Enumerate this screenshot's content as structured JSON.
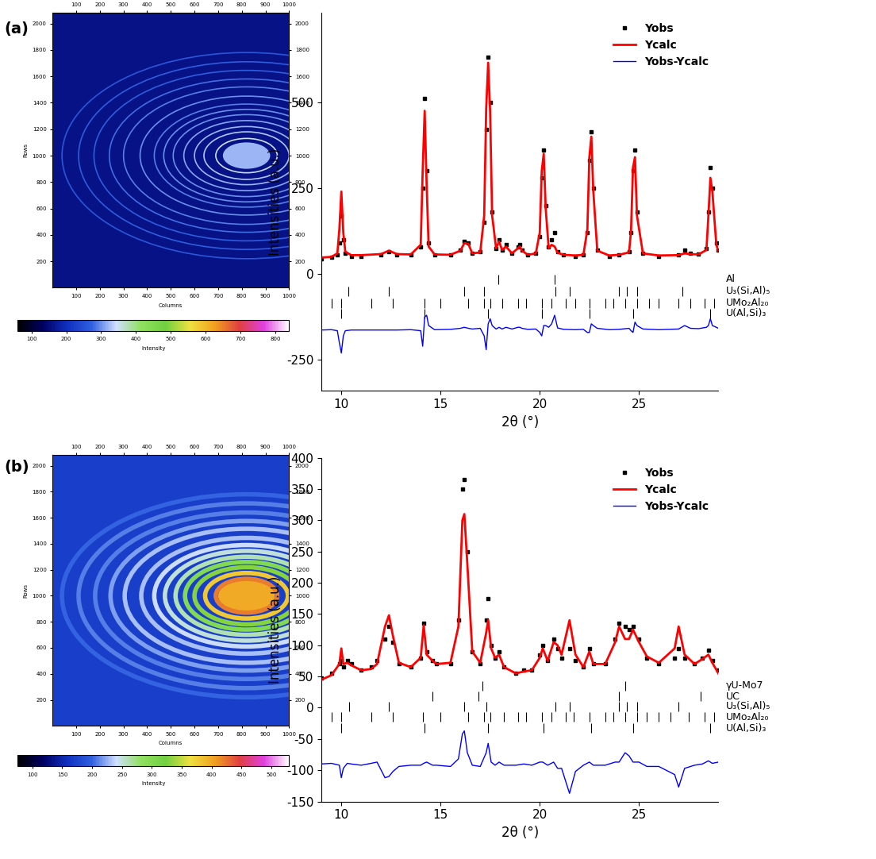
{
  "chart_data": [
    {
      "type": "detector_image",
      "panel": "(a)",
      "xlabel": "Columns",
      "ylabel": "Rows",
      "xlim": [
        0,
        1000
      ],
      "xticks": [
        100,
        200,
        300,
        400,
        500,
        600,
        700,
        800,
        900,
        1000
      ],
      "ylim": [
        0,
        2080
      ],
      "yticks": [
        200,
        400,
        600,
        800,
        1000,
        1200,
        1400,
        1600,
        1800,
        2000
      ],
      "center": [
        820,
        1000
      ],
      "background": 160,
      "glow": {
        "radius": 100,
        "intensity": 320
      },
      "rings": {
        "radius": [
          130,
          180,
          220,
          265,
          310,
          350,
          390,
          450,
          520,
          580,
          645,
          710,
          780
        ],
        "intensity": [
          350,
          330,
          320,
          310,
          300,
          300,
          290,
          300,
          290,
          280,
          270,
          270,
          260
        ]
      },
      "colorbar": {
        "label": "Intensity",
        "range": [
          60,
          840
        ],
        "ticks": [
          100,
          200,
          300,
          400,
          500,
          600,
          700,
          800
        ]
      }
    },
    {
      "type": "line",
      "xlabel": "2θ (°)",
      "ylabel": "Intensities (a.u.)",
      "xlim": [
        9,
        29
      ],
      "xticks": [
        10,
        15,
        20,
        25
      ],
      "ylim": [
        -340,
        760
      ],
      "yticks": [
        -250,
        0,
        250,
        500
      ],
      "legend": "upper right",
      "x": [
        9.0,
        9.5,
        9.8,
        9.9,
        10.0,
        10.1,
        10.2,
        10.5,
        11.0,
        12.0,
        12.4,
        12.8,
        13.5,
        14.0,
        14.1,
        14.2,
        14.3,
        14.4,
        14.7,
        15.5,
        16.0,
        16.2,
        16.4,
        16.6,
        17.0,
        17.2,
        17.3,
        17.4,
        17.5,
        17.6,
        17.8,
        17.95,
        18.1,
        18.3,
        18.6,
        18.9,
        19.0,
        19.1,
        19.4,
        19.8,
        20.0,
        20.1,
        20.2,
        20.3,
        20.45,
        20.6,
        20.75,
        20.9,
        21.2,
        21.8,
        22.2,
        22.4,
        22.5,
        22.6,
        22.7,
        22.9,
        23.5,
        24.0,
        24.5,
        24.6,
        24.7,
        24.8,
        24.9,
        25.2,
        26.0,
        27.0,
        27.3,
        27.6,
        28.0,
        28.4,
        28.5,
        28.6,
        28.7,
        28.9,
        29.0
      ],
      "series": [
        {
          "name": "Yobs",
          "color": "#000000",
          "marker": "square",
          "line_style": "none",
          "values": [
            45,
            48,
            55,
            90,
            170,
            100,
            60,
            52,
            52,
            55,
            65,
            55,
            55,
            80,
            250,
            510,
            300,
            90,
            55,
            55,
            70,
            95,
            90,
            60,
            65,
            150,
            420,
            630,
            500,
            180,
            75,
            100,
            70,
            85,
            60,
            80,
            85,
            70,
            55,
            60,
            110,
            280,
            360,
            200,
            80,
            100,
            120,
            65,
            55,
            52,
            55,
            120,
            330,
            415,
            250,
            70,
            52,
            55,
            65,
            120,
            300,
            360,
            180,
            60,
            52,
            55,
            70,
            60,
            58,
            75,
            180,
            310,
            250,
            90,
            70
          ]
        },
        {
          "name": "Ycalc",
          "color": "#ff0000",
          "line_style": "solid",
          "values": [
            48,
            50,
            60,
            130,
            240,
            120,
            65,
            55,
            55,
            58,
            68,
            58,
            57,
            85,
            300,
            475,
            260,
            80,
            57,
            56,
            68,
            90,
            88,
            60,
            63,
            170,
            480,
            615,
            470,
            170,
            75,
            95,
            70,
            80,
            60,
            75,
            80,
            68,
            56,
            60,
            120,
            300,
            350,
            190,
            75,
            85,
            80,
            62,
            56,
            54,
            56,
            130,
            340,
            400,
            240,
            68,
            54,
            56,
            63,
            125,
            310,
            340,
            170,
            60,
            54,
            55,
            60,
            58,
            57,
            70,
            170,
            280,
            240,
            85,
            68
          ]
        },
        {
          "name": "Yobs-Ycalc",
          "color": "#0000ff",
          "line_style": "solid",
          "values": [
            -163,
            -162,
            -165,
            -200,
            -230,
            -180,
            -165,
            -163,
            -163,
            -163,
            -163,
            -163,
            -162,
            -165,
            -210,
            -125,
            -120,
            -150,
            -162,
            -161,
            -158,
            -155,
            -158,
            -160,
            -158,
            -180,
            -220,
            -145,
            -130,
            -150,
            -160,
            -155,
            -160,
            -155,
            -160,
            -155,
            -155,
            -158,
            -161,
            -160,
            -170,
            -180,
            -150,
            -150,
            -155,
            -145,
            -120,
            -157,
            -161,
            -162,
            -161,
            -170,
            -170,
            -145,
            -150,
            -158,
            -162,
            -161,
            -158,
            -165,
            -170,
            -140,
            -150,
            -160,
            -162,
            -160,
            -150,
            -158,
            -159,
            -155,
            -150,
            -130,
            -150,
            -155,
            -158
          ]
        }
      ],
      "phases": [
        {
          "name": "Al",
          "level": -15,
          "positions": [
            17.9,
            20.75
          ]
        },
        {
          "name": "U₃(Si,Al)₅",
          "level": -50,
          "positions": [
            10.35,
            12.4,
            16.2,
            17.2,
            20.8,
            21.5,
            24.0,
            24.4,
            24.9,
            27.2
          ]
        },
        {
          "name": "UMo₂Al₂₀",
          "level": -85,
          "positions": [
            9.5,
            10.0,
            11.5,
            12.6,
            14.2,
            15.0,
            16.4,
            17.2,
            17.5,
            18.1,
            18.9,
            19.3,
            20.1,
            20.6,
            21.3,
            21.8,
            22.5,
            23.3,
            23.7,
            24.3,
            24.9,
            25.5,
            26.0,
            27.0,
            27.6,
            28.3,
            28.8
          ]
        },
        {
          "name": "U(Al,Si)₃",
          "level": -115,
          "positions": [
            10.0,
            14.2,
            17.4,
            20.1,
            22.5,
            24.7,
            28.6
          ]
        }
      ]
    },
    {
      "type": "detector_image",
      "panel": "(b)",
      "xlabel": "Columns",
      "ylabel": "Rows",
      "xlim": [
        0,
        1000
      ],
      "xticks": [
        100,
        200,
        300,
        400,
        500,
        600,
        700,
        800,
        900,
        1000
      ],
      "ylim": [
        0,
        2080
      ],
      "yticks": [
        200,
        400,
        600,
        800,
        1000,
        1200,
        1400,
        1600,
        1800,
        2000
      ],
      "center": [
        820,
        1000
      ],
      "background": 170,
      "glow": {
        "radius": 120,
        "intensity": 400
      },
      "rings": {
        "radius": [
          130,
          175,
          220,
          260,
          300,
          345,
          390,
          445,
          515,
          575,
          640,
          710,
          780
        ],
        "intensity": [
          420,
          380,
          330,
          300,
          260,
          250,
          240,
          230,
          230,
          220,
          210,
          210,
          200
        ]
      },
      "colorbar": {
        "label": "Intensity",
        "range": [
          75,
          530
        ],
        "ticks": [
          100,
          150,
          200,
          250,
          300,
          350,
          400,
          450,
          500
        ]
      }
    },
    {
      "type": "line",
      "xlabel": "2θ (°)",
      "ylabel": "Intensities (a.u.)",
      "xlim": [
        9,
        29
      ],
      "xticks": [
        10,
        15,
        20,
        25
      ],
      "ylim": [
        -150,
        400
      ],
      "yticks": [
        -150,
        -100,
        -50,
        0,
        50,
        100,
        150,
        200,
        250,
        300,
        350,
        400
      ],
      "legend": "upper right",
      "x": [
        9.0,
        9.5,
        9.9,
        10.0,
        10.1,
        10.3,
        10.5,
        11.0,
        11.5,
        11.8,
        12.2,
        12.4,
        12.6,
        12.9,
        13.5,
        14.0,
        14.15,
        14.3,
        14.6,
        14.8,
        15.5,
        15.9,
        16.1,
        16.2,
        16.35,
        16.6,
        17.0,
        17.3,
        17.4,
        17.55,
        17.75,
        17.95,
        18.2,
        18.8,
        19.2,
        19.6,
        20.0,
        20.15,
        20.4,
        20.7,
        20.9,
        21.1,
        21.5,
        21.8,
        22.2,
        22.5,
        22.7,
        23.3,
        23.8,
        24.0,
        24.3,
        24.5,
        24.7,
        25.0,
        25.4,
        26.0,
        26.8,
        27.0,
        27.3,
        27.8,
        28.2,
        28.5,
        28.7,
        29.0
      ],
      "series": [
        {
          "name": "Yobs",
          "color": "#000000",
          "marker": "square",
          "line_style": "none",
          "values": [
            47,
            55,
            70,
            75,
            65,
            75,
            70,
            60,
            65,
            75,
            110,
            130,
            105,
            70,
            65,
            80,
            135,
            90,
            75,
            70,
            70,
            140,
            350,
            365,
            250,
            90,
            70,
            140,
            175,
            100,
            80,
            90,
            65,
            55,
            60,
            60,
            85,
            100,
            75,
            110,
            95,
            80,
            95,
            75,
            65,
            95,
            70,
            70,
            110,
            135,
            130,
            125,
            130,
            110,
            80,
            70,
            80,
            95,
            80,
            70,
            80,
            92,
            75,
            60
          ]
        },
        {
          "name": "Ycalc",
          "color": "#ff0000",
          "line_style": "solid",
          "values": [
            45,
            52,
            70,
            95,
            70,
            72,
            68,
            60,
            62,
            70,
            130,
            148,
            115,
            72,
            65,
            80,
            132,
            85,
            75,
            70,
            72,
            130,
            300,
            310,
            230,
            90,
            72,
            120,
            140,
            95,
            80,
            85,
            65,
            55,
            58,
            60,
            80,
            95,
            75,
            105,
            100,
            85,
            140,
            85,
            65,
            90,
            70,
            70,
            105,
            130,
            110,
            110,
            125,
            105,
            82,
            72,
            95,
            130,
            85,
            70,
            78,
            85,
            72,
            55
          ]
        },
        {
          "name": "Yobs-Ycalc",
          "color": "#0000ff",
          "line_style": "solid",
          "values": [
            -90,
            -89,
            -92,
            -112,
            -97,
            -89,
            -90,
            -92,
            -89,
            -87,
            -112,
            -110,
            -102,
            -94,
            -92,
            -92,
            -89,
            -87,
            -92,
            -92,
            -94,
            -82,
            -42,
            -37,
            -72,
            -92,
            -94,
            -72,
            -57,
            -87,
            -92,
            -87,
            -92,
            -92,
            -90,
            -92,
            -87,
            -87,
            -92,
            -87,
            -97,
            -97,
            -137,
            -102,
            -92,
            -87,
            -92,
            -92,
            -87,
            -87,
            -72,
            -77,
            -87,
            -87,
            -94,
            -94,
            -107,
            -127,
            -97,
            -92,
            -90,
            -85,
            -89,
            -87
          ]
        }
      ],
      "phases": [
        {
          "name": "γU-Mo7",
          "level": 35,
          "positions": [
            17.1,
            24.3
          ]
        },
        {
          "name": "UC",
          "level": 18,
          "positions": [
            14.6,
            16.9,
            24.0,
            28.1
          ]
        },
        {
          "name": "U₃(Si,Al)₅",
          "level": 2,
          "positions": [
            10.4,
            12.4,
            16.2,
            17.3,
            20.8,
            21.5,
            24.0,
            24.4,
            24.9,
            27.0
          ]
        },
        {
          "name": "UMo₂Al₂₀",
          "level": -15,
          "positions": [
            9.5,
            10.0,
            11.5,
            12.6,
            14.1,
            15.0,
            16.4,
            17.2,
            17.5,
            18.2,
            18.9,
            19.3,
            20.1,
            20.6,
            21.3,
            21.7,
            22.5,
            23.3,
            23.7,
            24.3,
            24.9,
            25.4,
            26.0,
            26.6,
            27.5,
            28.3,
            28.8
          ]
        },
        {
          "name": "U(Al,Si)₃",
          "level": -33,
          "positions": [
            10.0,
            14.2,
            17.4,
            20.2,
            22.6,
            24.7,
            28.6
          ]
        }
      ]
    }
  ]
}
